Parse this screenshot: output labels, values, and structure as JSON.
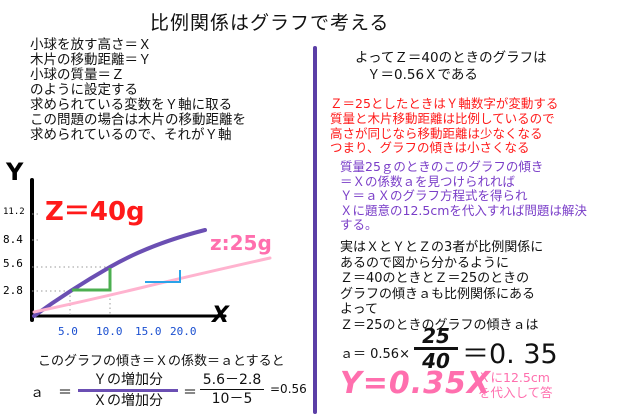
{
  "title": "比例関係はグラフで考える",
  "left_text": [
    "小球を放す高さ＝Ｘ",
    "木片の移動距離＝Ｙ",
    "小球の質量＝Ｚ",
    "のように設定する",
    "求められている変数をＹ軸に取る",
    "この問題の場合は木片の移動距離を",
    "求められているので、それがＹ軸"
  ],
  "graph": {
    "y_axis_label": "Y",
    "x_axis_label": "X",
    "y_ticks": [
      "11.2",
      "8.4",
      "5.6",
      "2.8"
    ],
    "x_ticks": [
      "5.0",
      "10.0",
      "15.0",
      "20.0"
    ],
    "label_z40": "Z＝40g",
    "label_z25": "z:25g",
    "colors": {
      "z40": "#6b4fb3",
      "z25": "#ffb3cf",
      "z40_label": "#ff1a1a",
      "z25_label": "#ff6fae",
      "green": "#4caf50",
      "blue": "#2aa3e8"
    }
  },
  "right": {
    "line1": "よってＺ＝40のときのグラフは",
    "line2": "Ｙ＝0.56Ｘである",
    "red_line": "Ｚ＝25としたときはＹ軸数字が変動する",
    "red_para": [
      "質量と木片移動距離は比例しているので",
      "高さが同じなら移動距離は少なくなる",
      "つまり、グラフの傾きは小さくなる"
    ],
    "purple_para": [
      "質量25ｇのときのこのグラフの傾き",
      "＝Ｘの係数ａを見つけられれば",
      "Ｙ＝ａＸのグラフ方程式を得られ",
      "Ｘに題意の12.5cmを代入すれば問題は解決",
      "する。"
    ],
    "black_para": [
      "実はＸとＹとＺの3者が比例関係に",
      "あるので図から分かるように",
      "Ｚ＝40のときとＺ＝25のときの",
      "グラフの傾きａも比例関係にある",
      "よって",
      "Ｚ＝25のときのグラフの傾きａは"
    ],
    "a_prefix": "ａ＝ 0.56×",
    "frac_num": "25",
    "frac_den": "40",
    "a_result": "＝0. 35",
    "y_eq": "Y=0.35X",
    "note_lines": [
      "Ｘに12.5cm",
      "を代入して答"
    ]
  },
  "bottom": {
    "caption": "このグラフの傾き＝Ｘの係数＝ａとすると",
    "lhs": "ａ",
    "eq": "＝",
    "num1": "Ｙの増加分",
    "den1": "Ｘの増加分",
    "eq2": "＝",
    "num2": "5.6－2.8",
    "den2": "10－5",
    "result": "=0.56"
  }
}
